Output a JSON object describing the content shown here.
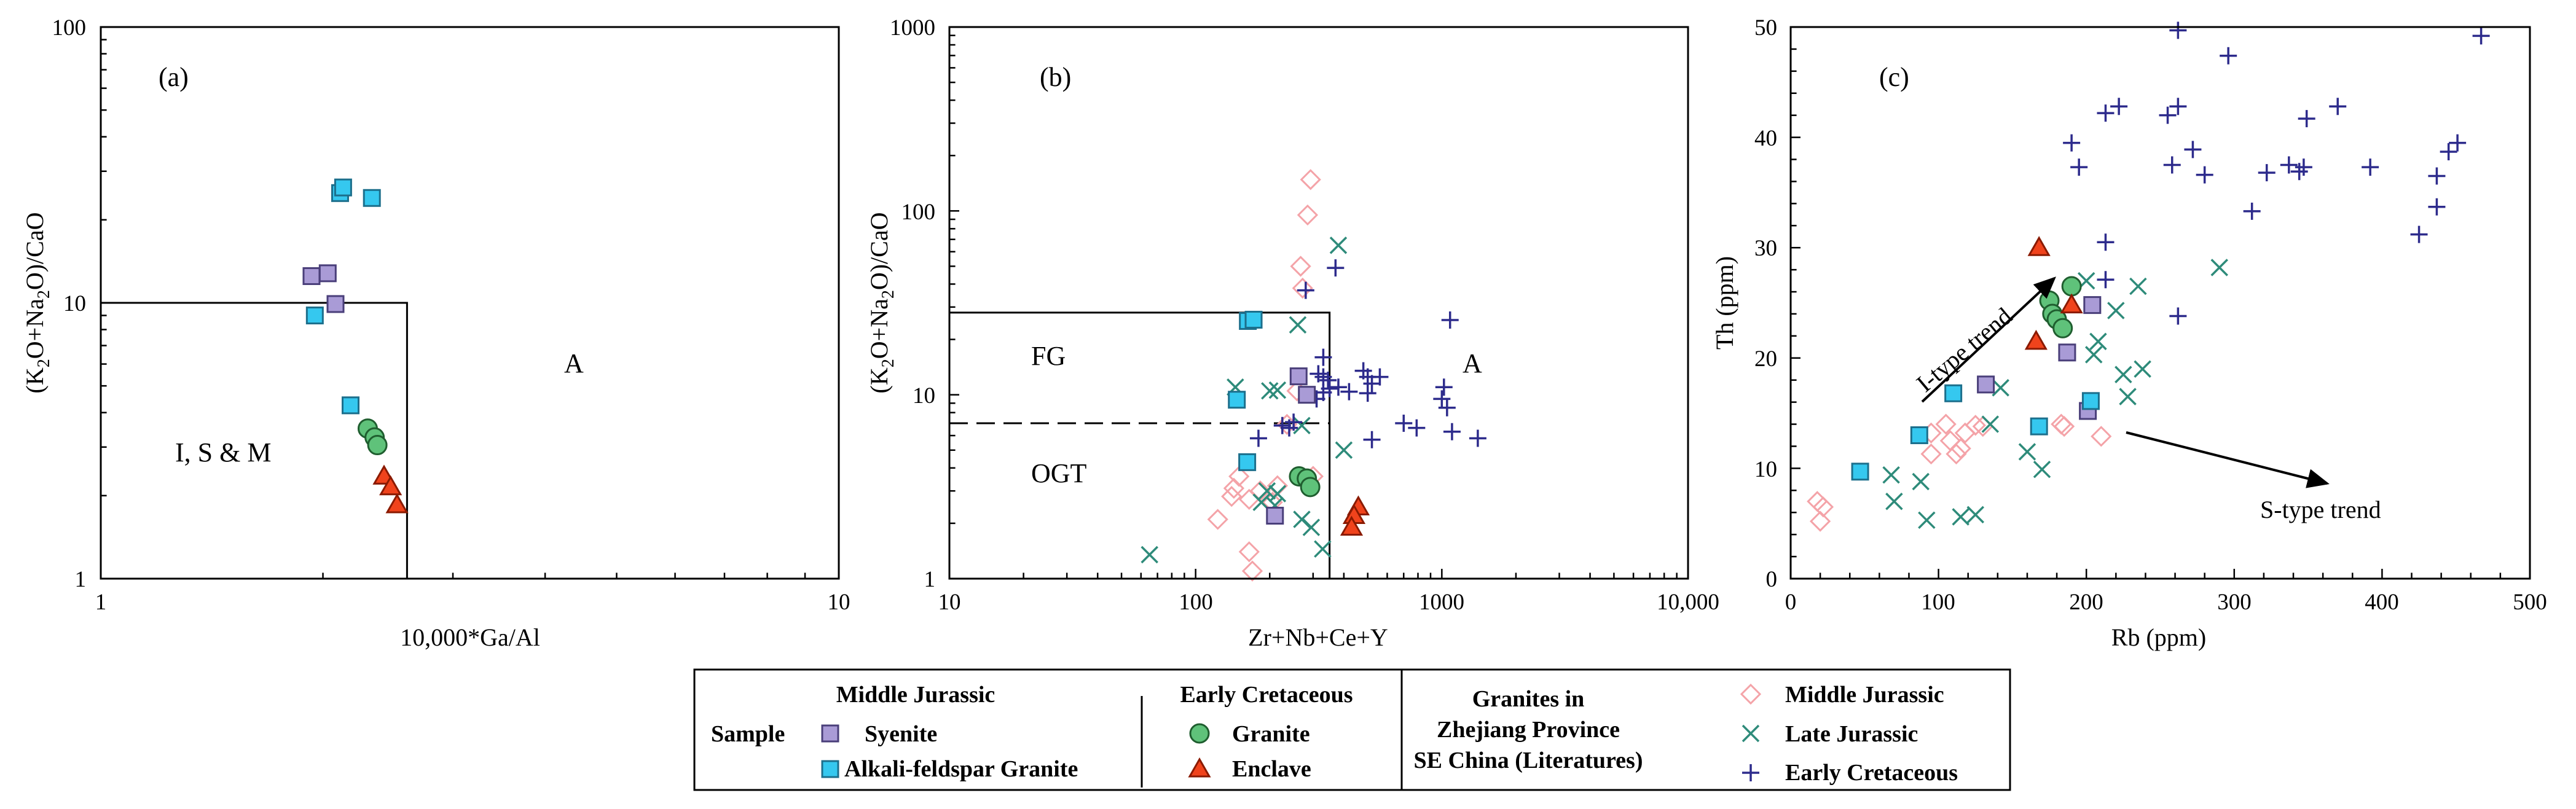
{
  "colors": {
    "syenite": "#a99bd6",
    "alkali_granite": "#35c8ef",
    "granite": "#5fc27a",
    "enclave": "#f0431c",
    "lit_mj": "#f4a3a8",
    "lit_lj": "#2e8b7a",
    "lit_ec": "#2d2b8c"
  },
  "chart_data": [
    {
      "type": "scatter",
      "panel_label": "(a)",
      "xlabel": "10,000*Ga/Al",
      "ylabel": "(K2O+Na2O)/CaO",
      "x_scale": "log",
      "y_scale": "log",
      "xlim": [
        1,
        10
      ],
      "ylim": [
        1,
        100
      ],
      "x_ticks": [
        "1",
        "10"
      ],
      "y_ticks": [
        "1",
        "10",
        "100"
      ],
      "fields": [
        "I, S & M",
        "A"
      ],
      "series": [
        {
          "name": "Syenite",
          "points": [
            [
              1.93,
              12.5
            ],
            [
              2.03,
              12.8
            ],
            [
              2.08,
              9.9
            ]
          ]
        },
        {
          "name": "Alkali-feldspar Granite",
          "points": [
            [
              2.11,
              25.0
            ],
            [
              2.13,
              26.2
            ],
            [
              2.33,
              24.0
            ],
            [
              1.95,
              9.0
            ],
            [
              2.18,
              4.25
            ]
          ]
        },
        {
          "name": "Granite",
          "points": [
            [
              2.3,
              3.5
            ],
            [
              2.35,
              3.25
            ],
            [
              2.37,
              3.05
            ]
          ]
        },
        {
          "name": "Enclave",
          "points": [
            [
              2.42,
              2.35
            ],
            [
              2.47,
              2.15
            ],
            [
              2.52,
              1.85
            ]
          ]
        }
      ]
    },
    {
      "type": "scatter",
      "panel_label": "(b)",
      "xlabel": "Zr+Nb+Ce+Y",
      "ylabel": "(K2O+Na2O)/CaO",
      "x_scale": "log",
      "y_scale": "log",
      "xlim": [
        10,
        10000
      ],
      "ylim": [
        1,
        1000
      ],
      "x_ticks": [
        "10",
        "100",
        "1000",
        "10,000"
      ],
      "y_ticks": [
        "1",
        "10",
        "100",
        "1000"
      ],
      "fields": [
        "FG",
        "OGT",
        "A"
      ],
      "series": [
        {
          "name": "Syenite",
          "points": [
            [
              262,
              12.6
            ],
            [
              283,
              10.0
            ],
            [
              210,
              2.2
            ]
          ]
        },
        {
          "name": "Alkali-feldspar Granite",
          "points": [
            [
              163,
              25.2
            ],
            [
              172,
              25.6
            ],
            [
              147,
              9.4
            ],
            [
              162,
              4.3
            ]
          ]
        },
        {
          "name": "Granite",
          "points": [
            [
              263,
              3.6
            ],
            [
              283,
              3.5
            ],
            [
              292,
              3.15
            ]
          ]
        },
        {
          "name": "Enclave",
          "points": [
            [
              458,
              2.45
            ],
            [
              440,
              2.2
            ],
            [
              430,
              1.9
            ]
          ]
        },
        {
          "name": "Middle Jurassic",
          "points": [
            [
              293,
              148
            ],
            [
              285,
              95
            ],
            [
              267,
              50
            ],
            [
              272,
              38
            ],
            [
              123,
              2.1
            ],
            [
              140,
              2.8
            ],
            [
              143,
              3.1
            ],
            [
              150,
              3.6
            ],
            [
              165,
              2.7
            ],
            [
              183,
              3.0
            ],
            [
              205,
              2.6
            ],
            [
              165,
              1.4
            ],
            [
              170,
              1.1
            ],
            [
              258,
              10.5
            ],
            [
              235,
              6.9
            ],
            [
              215,
              3.2
            ],
            [
              300,
              3.6
            ]
          ]
        },
        {
          "name": "Late Jurassic",
          "points": [
            [
              380,
              65
            ],
            [
              260,
              24
            ],
            [
              145,
              11
            ],
            [
              200,
              10.5
            ],
            [
              215,
              10.6
            ],
            [
              270,
              6.8
            ],
            [
              400,
              5.0
            ],
            [
              195,
              3.0
            ],
            [
              215,
              2.9
            ],
            [
              210,
              2.5
            ],
            [
              185,
              2.6
            ],
            [
              270,
              2.1
            ],
            [
              295,
              1.9
            ],
            [
              328,
              1.45
            ],
            [
              65,
              1.35
            ]
          ]
        },
        {
          "name": "Early Cretaceous",
          "points": [
            [
              370,
              49
            ],
            [
              280,
              37
            ],
            [
              330,
              16
            ],
            [
              315,
              13
            ],
            [
              330,
              12.5
            ],
            [
              345,
              12
            ],
            [
              380,
              11
            ],
            [
              420,
              10.4
            ],
            [
              480,
              13.5
            ],
            [
              500,
              12.5
            ],
            [
              520,
              11.5
            ],
            [
              560,
              12.5
            ],
            [
              310,
              9.5
            ],
            [
              250,
              7.1
            ],
            [
              240,
              6.6
            ],
            [
              225,
              6.8
            ],
            [
              180,
              5.8
            ],
            [
              520,
              5.7
            ],
            [
              700,
              7.0
            ],
            [
              790,
              6.6
            ],
            [
              1000,
              9.5
            ],
            [
              1020,
              11
            ],
            [
              1050,
              8.5
            ],
            [
              1080,
              25.5
            ],
            [
              1100,
              6.3
            ],
            [
              1400,
              5.8
            ],
            [
              330,
              10.3
            ],
            [
              350,
              10.8
            ],
            [
              500,
              10.2
            ]
          ]
        }
      ]
    },
    {
      "type": "scatter",
      "panel_label": "(c)",
      "xlabel": "Rb (ppm)",
      "ylabel": "Th (ppm)",
      "xlim": [
        0,
        500
      ],
      "ylim": [
        0,
        50
      ],
      "x_ticks": [
        "0",
        "100",
        "200",
        "300",
        "400",
        "500"
      ],
      "y_ticks": [
        "0",
        "10",
        "20",
        "30",
        "40",
        "50"
      ],
      "annotations": [
        "I-type trend",
        "S-type trend"
      ],
      "series": [
        {
          "name": "Syenite",
          "points": [
            [
              132,
              17.6
            ],
            [
              187,
              20.5
            ],
            [
              204,
              24.8
            ],
            [
              201,
              15.2
            ]
          ]
        },
        {
          "name": "Alkali-feldspar Granite",
          "points": [
            [
              47,
              9.7
            ],
            [
              87,
              13.0
            ],
            [
              110,
              16.8
            ],
            [
              168,
              13.8
            ],
            [
              203,
              16.1
            ]
          ]
        },
        {
          "name": "Granite",
          "points": [
            [
              175,
              25.2
            ],
            [
              177,
              24.0
            ],
            [
              180,
              23.5
            ],
            [
              184,
              22.7
            ],
            [
              190,
              26.5
            ]
          ]
        },
        {
          "name": "Enclave",
          "points": [
            [
              168,
              30.0
            ],
            [
              166,
              21.5
            ],
            [
              190,
              24.8
            ]
          ]
        },
        {
          "name": "Middle Jurassic",
          "points": [
            [
              18,
              7.0
            ],
            [
              22,
              6.5
            ],
            [
              20,
              5.2
            ],
            [
              95,
              13.2
            ],
            [
              95,
              11.3
            ],
            [
              105,
              14.0
            ],
            [
              108,
              12.5
            ],
            [
              112,
              11.3
            ],
            [
              115,
              11.8
            ],
            [
              118,
              13.2
            ],
            [
              125,
              13.9
            ],
            [
              130,
              13.8
            ],
            [
              183,
              14.0
            ],
            [
              185,
              13.8
            ],
            [
              210,
              12.9
            ]
          ]
        },
        {
          "name": "Late Jurassic",
          "points": [
            [
              68,
              9.4
            ],
            [
              70,
              7.0
            ],
            [
              88,
              8.8
            ],
            [
              92,
              5.3
            ],
            [
              115,
              5.6
            ],
            [
              125,
              5.8
            ],
            [
              135,
              14.0
            ],
            [
              142,
              17.3
            ],
            [
              160,
              11.5
            ],
            [
              170,
              9.9
            ],
            [
              200,
              27.0
            ],
            [
              205,
              20.3
            ],
            [
              208,
              21.5
            ],
            [
              220,
              24.3
            ],
            [
              225,
              18.5
            ],
            [
              228,
              16.5
            ],
            [
              235,
              26.5
            ],
            [
              238,
              19.0
            ],
            [
              290,
              28.2
            ]
          ]
        },
        {
          "name": "Early Cretaceous",
          "points": [
            [
              190,
              39.5
            ],
            [
              195,
              37.3
            ],
            [
              213,
              42.2
            ],
            [
              222,
              42.8
            ],
            [
              213,
              30.5
            ],
            [
              213,
              27.1
            ],
            [
              255,
              42.0
            ],
            [
              262,
              42.8
            ],
            [
              258,
              37.5
            ],
            [
              262,
              49.7
            ],
            [
              262,
              23.8
            ],
            [
              272,
              38.9
            ],
            [
              280,
              36.6
            ],
            [
              296,
              47.4
            ],
            [
              312,
              33.3
            ],
            [
              322,
              36.8
            ],
            [
              337,
              37.5
            ],
            [
              344,
              36.9
            ],
            [
              349,
              41.7
            ],
            [
              370,
              42.8
            ],
            [
              392,
              37.3
            ],
            [
              425,
              31.2
            ],
            [
              437,
              33.7
            ],
            [
              437,
              36.5
            ],
            [
              445,
              38.7
            ],
            [
              451,
              39.5
            ],
            [
              467,
              49.2
            ],
            [
              347,
              37.3
            ]
          ]
        }
      ]
    }
  ],
  "legend": {
    "sample_label": "Sample",
    "group1_title": "Middle Jurassic",
    "group1_items": [
      "Syenite",
      "Alkali-feldspar Granite"
    ],
    "group2_title": "Early Cretaceous",
    "group2_items": [
      "Granite",
      "Enclave"
    ],
    "lit_title_lines": [
      "Granites in",
      "Zhejiang Province",
      "SE China (Literatures)"
    ],
    "lit_items": [
      "Middle Jurassic",
      "Late Jurassic",
      "Early Cretaceous"
    ]
  }
}
